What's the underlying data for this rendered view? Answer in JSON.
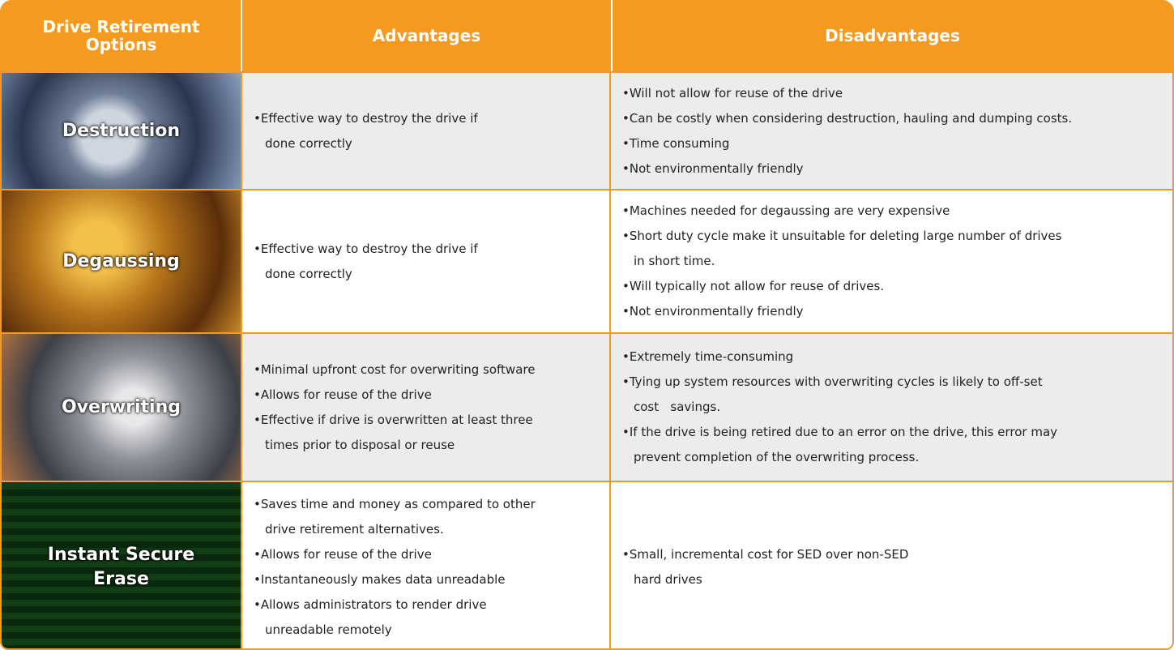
{
  "header": {
    "cells": [
      "Drive Retirement Options",
      "Advantages",
      "Disadvantages"
    ]
  },
  "rows": [
    {
      "label": "Destruction",
      "advantages": [
        [
          "Effective way to destroy the drive if",
          "done correctly"
        ]
      ],
      "disadvantages": [
        [
          "Will not allow for reuse of the drive"
        ],
        [
          "Can be costly when considering destruction, hauling and dumping costs."
        ],
        [
          "Time consuming"
        ],
        [
          "Not environmentally friendly"
        ]
      ]
    },
    {
      "label": "Degaussing",
      "advantages": [
        [
          "Effective way to destroy the drive if",
          "done correctly"
        ]
      ],
      "disadvantages": [
        [
          "Machines needed for degaussing are very expensive"
        ],
        [
          "Short duty cycle make it unsuitable for deleting large number of drives",
          "in short time."
        ],
        [
          "Will typically not allow for reuse of drives."
        ],
        [
          "Not environmentally friendly"
        ]
      ]
    },
    {
      "label": "Overwriting",
      "advantages": [
        [
          "Minimal upfront cost for overwriting software"
        ],
        [
          "Allows for reuse of the drive"
        ],
        [
          "Effective if drive is overwritten at least three",
          "times prior to disposal or reuse"
        ]
      ],
      "disadvantages": [
        [
          "Extremely time-consuming"
        ],
        [
          "Tying up system resources with overwriting cycles is likely to off-set",
          "cost   savings."
        ],
        [
          "If the drive is being retired due to an error on the drive, this error may",
          "prevent completion of the overwriting process."
        ]
      ]
    },
    {
      "label": "Instant Secure Erase",
      "advantages": [
        [
          "Saves time and money as compared to other",
          "drive retirement alternatives."
        ],
        [
          "Allows for reuse of the drive"
        ],
        [
          "Instantaneously makes data unreadable"
        ],
        [
          "Allows administrators to render drive",
          "unreadable remotely"
        ]
      ],
      "disadvantages": [
        [
          "Small, incremental cost for SED over non-SED",
          "hard drives"
        ]
      ]
    }
  ]
}
